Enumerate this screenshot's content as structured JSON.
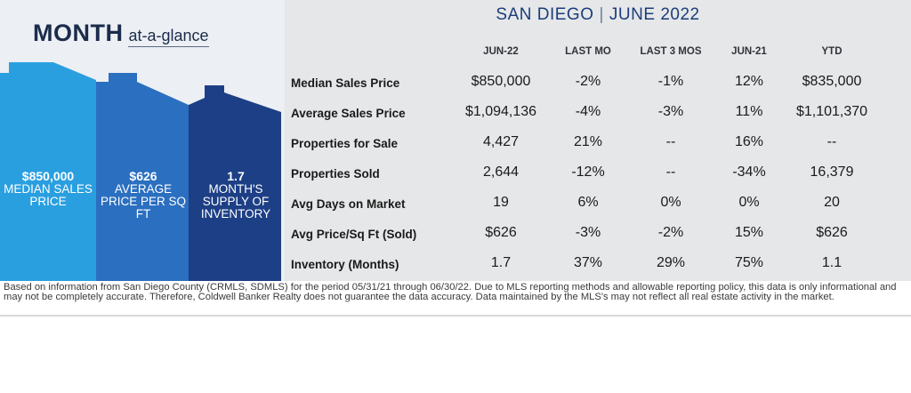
{
  "left_panel": {
    "title_main": "MONTH",
    "title_sub": "at-a-glance",
    "stats": [
      {
        "value": "$850,000",
        "label": "MEDIAN SALES PRICE"
      },
      {
        "value": "$626",
        "label": "AVERAGE PRICE PER SQ FT"
      },
      {
        "value": "1.7",
        "label": "MONTH'S SUPPLY OF INVENTORY"
      }
    ],
    "colors": {
      "house1": "#2a9fe0",
      "house2": "#2b6fc0",
      "house3": "#1d3f86"
    }
  },
  "header": {
    "city": "SAN DIEGO",
    "separator": "|",
    "period": "JUNE 2022"
  },
  "table": {
    "columns": [
      "JUN-22",
      "LAST MO",
      "LAST 3 MOS",
      "JUN-21",
      "YTD"
    ],
    "rows": [
      {
        "name": "Median Sales Price",
        "cells": [
          "$850,000",
          "-2%",
          "-1%",
          "12%",
          "$835,000"
        ]
      },
      {
        "name": "Average Sales Price",
        "cells": [
          "$1,094,136",
          "-4%",
          "-3%",
          "11%",
          "$1,101,370"
        ]
      },
      {
        "name": "Properties for Sale",
        "cells": [
          "4,427",
          "21%",
          "--",
          "16%",
          "--"
        ]
      },
      {
        "name": "Properties Sold",
        "cells": [
          "2,644",
          "-12%",
          "--",
          "-34%",
          "16,379"
        ]
      },
      {
        "name": "Avg Days on Market",
        "cells": [
          "19",
          "6%",
          "0%",
          "0%",
          "20"
        ]
      },
      {
        "name": "Avg Price/Sq Ft (Sold)",
        "cells": [
          "$626",
          "-3%",
          "-2%",
          "15%",
          "$626"
        ]
      },
      {
        "name": "Inventory (Months)",
        "cells": [
          "1.7",
          "37%",
          "29%",
          "75%",
          "1.1"
        ]
      }
    ]
  },
  "footer": "Based on information from San Diego County (CRMLS, SDMLS) for the period 05/31/21 through 06/30/22. Due to MLS reporting methods and allowable reporting policy, this data is only informational and may not be completely accurate. Therefore, Coldwell Banker Realty does not guarantee the data accuracy. Data maintained by the MLS's may not reflect all real estate activity in the market."
}
